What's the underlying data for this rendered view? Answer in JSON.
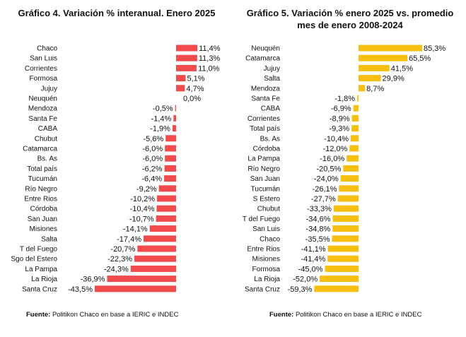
{
  "chart_data": [
    {
      "type": "bar",
      "orientation": "horizontal",
      "title": "Gráfico 4. Variación % interanual. Enero 2025",
      "categories": [
        "Chaco",
        "San Luis",
        "Corrientes",
        "Formosa",
        "Jujuy",
        "Neuquén",
        "Mendoza",
        "Santa Fe",
        "CABA",
        "Chubut",
        "Catamarca",
        "Bs. As",
        "Total país",
        "Tucumán",
        "Río Negro",
        "Entre Rios",
        "Córdoba",
        "San Juan",
        "Misiones",
        "Salta",
        "T del Fuego",
        "Sgo del Estero",
        "La Pampa",
        "La Rioja",
        "Santa Cruz"
      ],
      "values": [
        11.4,
        11.3,
        11.0,
        5.1,
        4.7,
        0.0,
        -0.5,
        -1.4,
        -1.9,
        -5.6,
        -6.0,
        -6.0,
        -6.2,
        -6.4,
        -9.2,
        -10.2,
        -10.4,
        -10.7,
        -14.1,
        -17.4,
        -20.7,
        -22.3,
        -24.3,
        -36.9,
        -43.5
      ],
      "value_labels": [
        "11,4%",
        "11,3%",
        "11,0%",
        "5,1%",
        "4,7%",
        "0,0%",
        "-0,5%",
        "-1,4%",
        "-1,9%",
        "-5,6%",
        "-6,0%",
        "-6,0%",
        "-6,2%",
        "-6,4%",
        "-9,2%",
        "-10,2%",
        "-10,4%",
        "-10,7%",
        "-14,1%",
        "-17,4%",
        "-20,7%",
        "-22,3%",
        "-24,3%",
        "-36,9%",
        "-43,5%"
      ],
      "color": "#f24b4e",
      "source_label": "Fuente:",
      "source_text": " Politikon Chaco en base a IERIC e INDEC"
    },
    {
      "type": "bar",
      "orientation": "horizontal",
      "title": "Gráfico 5. Variación % enero 2025 vs. promedio mes de enero 2008-2024",
      "categories": [
        "Neuquén",
        "Catamarca",
        "Jujuy",
        "Salta",
        "Mendoza",
        "Santa Fe",
        "CABA",
        "Corrientes",
        "Total país",
        "Bs. As",
        "Córdoba",
        "La Pampa",
        "Río Negro",
        "San Juan",
        "Tucumán",
        "S Estero",
        "Chubut",
        "T del Fuego",
        "San Luis",
        "Chaco",
        "Entre Rios",
        "Misiones",
        "Formosa",
        "La Rioja",
        "Santa Cruz"
      ],
      "values": [
        85.3,
        65.5,
        41.5,
        29.9,
        8.7,
        -1.8,
        -6.9,
        -8.9,
        -9.3,
        -10.4,
        -12.0,
        -16.0,
        -20.5,
        -24.0,
        -26.1,
        -27.7,
        -33.3,
        -34.6,
        -34.8,
        -35.5,
        -41.1,
        -41.4,
        -45.0,
        -52.0,
        -59.3
      ],
      "value_labels": [
        "85,3%",
        "65,5%",
        "41,5%",
        "29,9%",
        "8,7%",
        "-1,8%",
        "-6,9%",
        "-8,9%",
        "-9,3%",
        "-10,4%",
        "-12,0%",
        "-16,0%",
        "-20,5%",
        "-24,0%",
        "-26,1%",
        "-27,7%",
        "-33,3%",
        "-34,6%",
        "-34,8%",
        "-35,5%",
        "-41,1%",
        "-41,4%",
        "-45,0%",
        "-52,0%",
        "-59,3%"
      ],
      "color": "#f7bf10",
      "source_label": "Fuente:",
      "source_text": " Politikon Chaco en base a IERIC e INDEC"
    }
  ]
}
